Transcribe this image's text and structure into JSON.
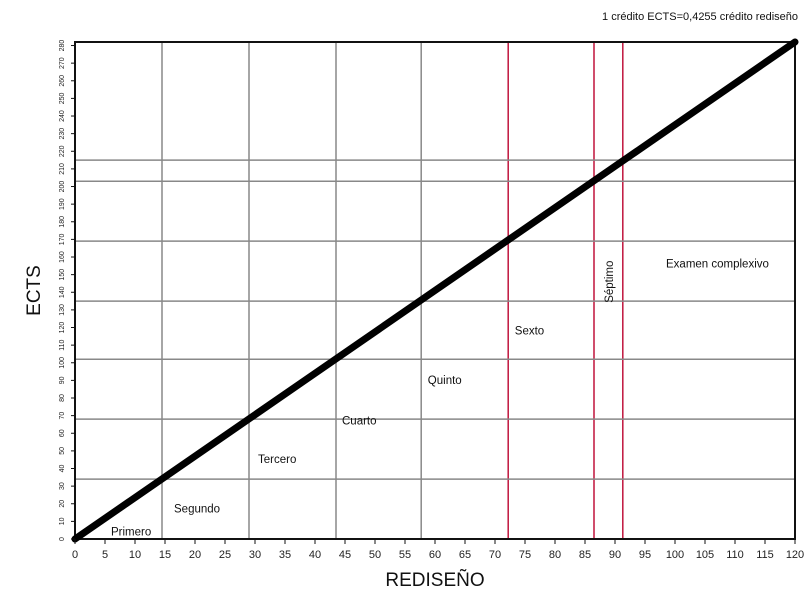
{
  "chart_data": {
    "type": "line",
    "note": "1 crédito ECTS=0,4255 crédito rediseño",
    "xlabel": "REDISEÑO",
    "ylabel": "ECTS",
    "xlim": [
      0,
      120
    ],
    "ylim": [
      0,
      282
    ],
    "x_ticks": [
      "0",
      "5",
      "10",
      "15",
      "20",
      "25",
      "30",
      "35",
      "40",
      "45",
      "50",
      "55",
      "60",
      "65",
      "70",
      "75",
      "80",
      "85",
      "90",
      "95",
      "100",
      "105",
      "110",
      "115",
      "120"
    ],
    "y_ticks": [
      "0",
      "10",
      "20",
      "30",
      "40",
      "50",
      "60",
      "70",
      "80",
      "90",
      "100",
      "110",
      "120",
      "130",
      "140",
      "150",
      "160",
      "170",
      "180",
      "190",
      "200",
      "210",
      "220",
      "230",
      "240",
      "250",
      "260",
      "270",
      "280"
    ],
    "series": [
      {
        "points": [
          [
            0,
            0
          ],
          [
            120,
            282
          ]
        ]
      }
    ],
    "vertical_lines": [
      {
        "x": 14.5,
        "color": "#888888"
      },
      {
        "x": 29,
        "color": "#888888"
      },
      {
        "x": 43.5,
        "color": "#888888"
      },
      {
        "x": 57.7,
        "color": "#888888"
      },
      {
        "x": 72.2,
        "color": "#c0143c"
      },
      {
        "x": 86.5,
        "color": "#c0143c"
      },
      {
        "x": 91.3,
        "color": "#c0143c"
      }
    ],
    "horizontal_lines": [
      {
        "y": 34,
        "color": "#888888"
      },
      {
        "y": 68,
        "color": "#888888"
      },
      {
        "y": 102,
        "color": "#888888"
      },
      {
        "y": 135,
        "color": "#888888"
      },
      {
        "y": 169,
        "color": "#888888"
      },
      {
        "y": 203,
        "color": "#888888"
      },
      {
        "y": 215,
        "color": "#888888"
      }
    ],
    "annotations": [
      {
        "text": "Primero",
        "x": 6,
        "y": 2
      },
      {
        "text": "Segundo",
        "x": 16.5,
        "y": 15
      },
      {
        "text": "Tercero",
        "x": 30.5,
        "y": 43
      },
      {
        "text": "Cuarto",
        "x": 44.5,
        "y": 65
      },
      {
        "text": "Quinto",
        "x": 58.8,
        "y": 88
      },
      {
        "text": "Sexto",
        "x": 73.3,
        "y": 116
      },
      {
        "text": "Séptimo",
        "x": 89.7,
        "y": 146,
        "rotate": -90
      },
      {
        "text": "Examen complexivo",
        "x": 98.5,
        "y": 154
      }
    ]
  }
}
